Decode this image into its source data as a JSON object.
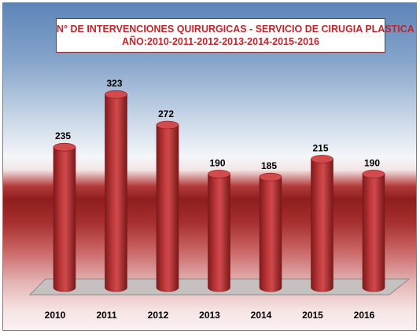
{
  "chart_data": {
    "type": "bar",
    "title": "N° DE INTERVENCIONES QUIRURGICAS - SERVICIO DE CIRUGIA PLASTICA",
    "subtitle": "AÑO:2010-2011-2012-2013-2014-2015-2016",
    "categories": [
      "2010",
      "2011",
      "2012",
      "2013",
      "2014",
      "2015",
      "2016"
    ],
    "values": [
      235,
      323,
      272,
      190,
      185,
      215,
      190
    ],
    "data_labels": [
      "235",
      "323",
      "272",
      "190",
      "185",
      "215",
      "190"
    ],
    "xlabel": "",
    "ylabel": "",
    "ylim": [
      0,
      350
    ],
    "grid": false,
    "legend": "none",
    "bar_shape": "3d-cylinder",
    "colors": {
      "bar": "#c0393b",
      "bar_dark": "#7e1a1c",
      "bar_top": "#d24a4c",
      "floor": "#c7c0c0",
      "title_text": "#c0242a",
      "title_border": "#8c2a2a",
      "label_text": "#000000"
    }
  }
}
